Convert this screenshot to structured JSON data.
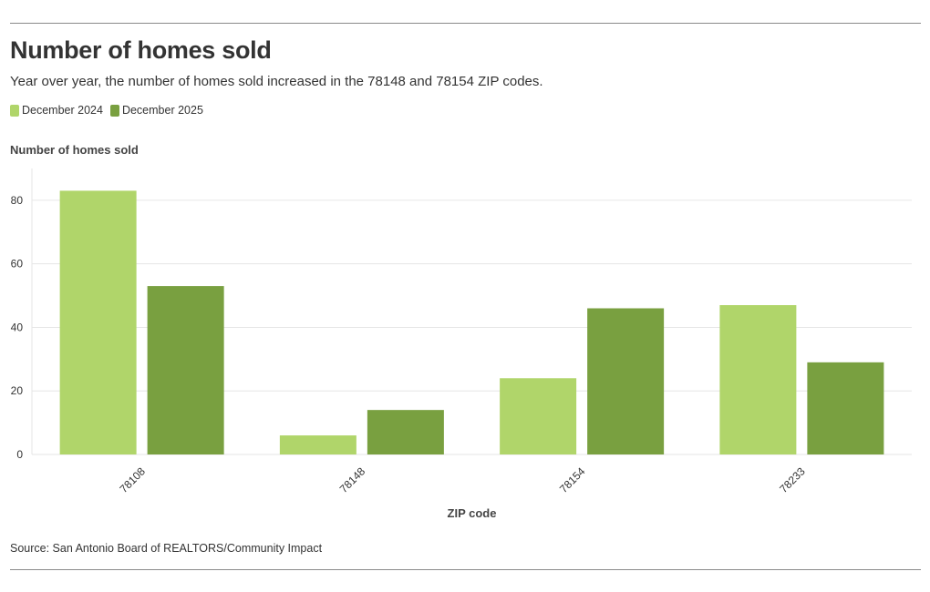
{
  "title": "Number of homes sold",
  "subtitle": "Year over year, the number of homes sold increased in the 78148 and 78154 ZIP codes.",
  "source": "Source: San Antonio Board of REALTORS/Community Impact",
  "colors": {
    "series_2024": "#b0d56a",
    "series_2025": "#79a040",
    "grid": "#e6e6e6",
    "rule": "#8a8a8a"
  },
  "chart_data": {
    "type": "bar",
    "title": "Number of homes sold",
    "xlabel": "ZIP code",
    "ylabel": "Number of homes sold",
    "categories": [
      "78108",
      "78148",
      "78154",
      "78233"
    ],
    "series": [
      {
        "name": "December 2024",
        "values": [
          83,
          6,
          24,
          47
        ]
      },
      {
        "name": "December 2025",
        "values": [
          53,
          14,
          46,
          29
        ]
      }
    ],
    "yticks": [
      0,
      20,
      40,
      60,
      80
    ],
    "ylim": [
      0,
      90
    ],
    "grid": true,
    "legend_position": "top-left"
  }
}
